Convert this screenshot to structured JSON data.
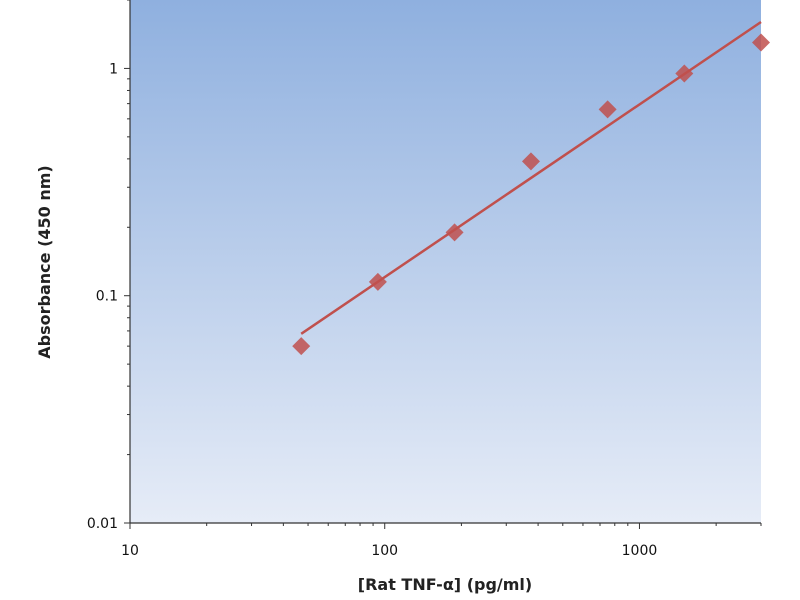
{
  "chart_data": {
    "type": "scatter",
    "title": "",
    "xlabel": "[Rat TNF-α] (pg/ml)",
    "ylabel": "Absorbance (450 nm)",
    "x_scale": "log",
    "y_scale": "log",
    "xlim": [
      10,
      3000
    ],
    "ylim": [
      0.01,
      2
    ],
    "x_ticks": [
      {
        "value": 10,
        "label": "10"
      },
      {
        "value": 100,
        "label": "100"
      },
      {
        "value": 1000,
        "label": "1000"
      }
    ],
    "y_ticks": [
      {
        "value": 0.01,
        "label": "0.01"
      },
      {
        "value": 0.1,
        "label": "0.1"
      },
      {
        "value": 1,
        "label": "1"
      }
    ],
    "grid": false,
    "legend": "none",
    "series": [
      {
        "marker": "diamond",
        "color": "#c0504d",
        "points": [
          {
            "x": 47,
            "y": 0.06
          },
          {
            "x": 94,
            "y": 0.115
          },
          {
            "x": 188,
            "y": 0.19
          },
          {
            "x": 375,
            "y": 0.39
          },
          {
            "x": 750,
            "y": 0.66
          },
          {
            "x": 1500,
            "y": 0.95
          },
          {
            "x": 3000,
            "y": 1.3
          }
        ]
      }
    ],
    "fit_line": {
      "color": "#c0504d",
      "points": [
        {
          "x": 47,
          "y": 0.068
        },
        {
          "x": 3000,
          "y": 1.6
        }
      ]
    },
    "colors": {
      "plot_bg_top": "#8fb0df",
      "plot_bg_bottom": "#e6ecf7",
      "axis": "#333333"
    }
  }
}
